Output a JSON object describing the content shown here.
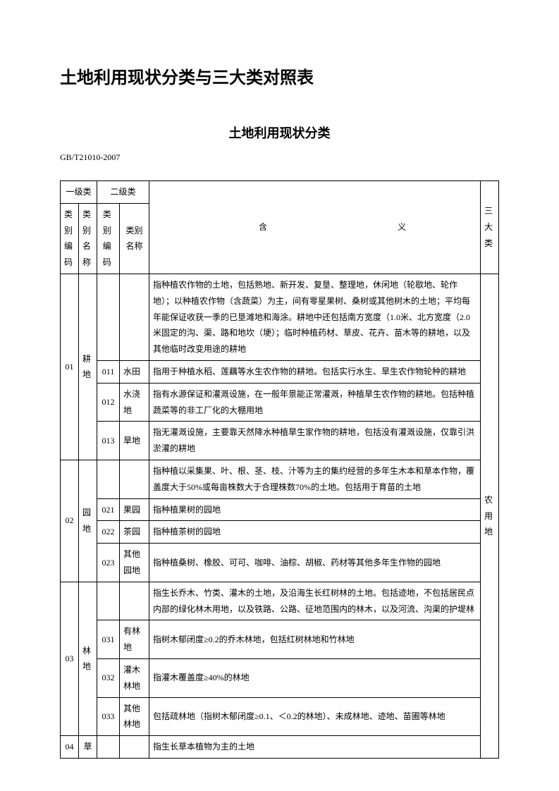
{
  "title_main": "土地利用现状分类与三大类对照表",
  "title_sub": "土地利用现状分类",
  "standard": "GB/T21010-2007",
  "header": {
    "lvl1": "一级类",
    "lvl2": "二级类",
    "desc_a": "含",
    "desc_b": "义",
    "cat3": "三大类",
    "code": "类别编码",
    "name": "类别名称"
  },
  "cat3_label": "农用地",
  "r01": {
    "code": "01",
    "name": "耕地",
    "desc": "指种植农作物的土地，包括熟地、新开发、复垦、整理地，休闲地（轮歇地、轮作地）；以种植农作物（含蔬菜）为主，间有零星果树、桑树或其他树木的土地；平均每年能保证收获一季的已垦滩地和海涂。耕地中还包括南方宽度（1.0米、北方宽度（2.0米固定的沟、渠、路和地坎（埂）；临时种植药材、草皮、花卉、苗木等的耕地，以及其他临时改变用途的耕地",
    "s011": {
      "code": "011",
      "name": "水田",
      "desc": "指用于种植水稻、莲藕等水生农作物的耕地。包括实行水生、旱生农作物轮种的耕地"
    },
    "s012": {
      "code": "012",
      "name": "水浇地",
      "desc": "指有水源保证和灌溉设施，在一般年景能正常灌溉，种植旱生农作物的耕地。包括种植蔬菜等的非工厂化的大棚用地"
    },
    "s013": {
      "code": "013",
      "name": "旱地",
      "desc": "指无灌溉设施，主要靠天然降水种植旱生家作物的耕地，包括没有灌溉设施，仅靠引洪淤灌的耕地"
    }
  },
  "r02": {
    "code": "02",
    "name": "园地",
    "desc": "指种植以采集果、叶、根、茎、枝、汁等为主的集约经营的多年生木本和草本作物，覆盖度大于50%或每亩株数大于合理株数70%的土地。包括用于育苗的土地",
    "s021": {
      "code": "021",
      "name": "果园",
      "desc": "指种植果树的园地"
    },
    "s022": {
      "code": "022",
      "name": "茶园",
      "desc": "指种植茶树的园地"
    },
    "s023": {
      "code": "023",
      "name": "其他园地",
      "desc": "指种植桑树、橡胶、可可、咖啡、油棕、胡椒、药材等其他多年生作物的园地"
    }
  },
  "r03": {
    "code": "03",
    "name": "林地",
    "desc": "指生长乔木、竹类、灌木的土地，及沿海生长红树林的土地。包括迹地，不包括居民点内部的绿化林木用地，以及铁路、公路、征地范围内的林木，以及河流、沟渠的护堤林",
    "s031": {
      "code": "031",
      "name": "有林地",
      "desc": "指树木郁闭度≥0.2的乔木林地，包括红树林地和竹林地"
    },
    "s032": {
      "code": "032",
      "name": "灌木林地",
      "desc": "指灌木覆盖度≥40%的林地"
    },
    "s033": {
      "code": "033",
      "name": "其他林地",
      "desc": "包括疏林地（指树木郁闭度≥0.1、＜0.2的林地）、未成林地、迹地、苗圃等林地"
    }
  },
  "r04": {
    "code": "04",
    "name": "草",
    "desc": "指生长草本植物为主的土地"
  }
}
